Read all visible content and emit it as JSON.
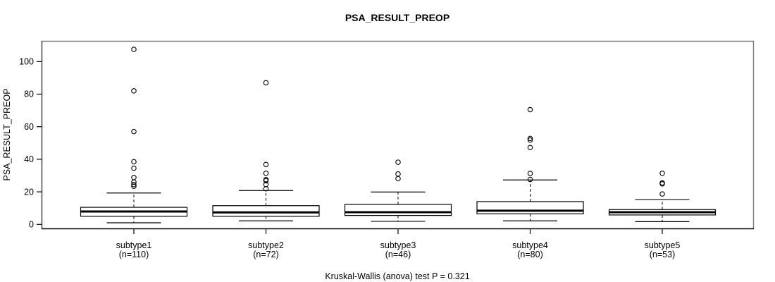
{
  "chart_data": {
    "type": "boxplot",
    "title": "PSA_RESULT_PREOP",
    "ylabel": "PSA_RESULT_PREOP",
    "caption": "Kruskal-Wallis (anova) test P = 0.321",
    "yticks": [
      0,
      20,
      40,
      60,
      80,
      100
    ],
    "ylim": [
      -2.9,
      112.7
    ],
    "grid": false,
    "legend": "none",
    "box_color": "#ffffff",
    "line_color": "#000000",
    "frame_color_topright": "#7d7d7d",
    "groups": [
      {
        "label": "subtype1",
        "n_label": "(n=110)",
        "whisker_low": 1.0,
        "q1": 5.0,
        "median": 7.9,
        "q3": 10.5,
        "whisker_high": 19.3,
        "outliers": [
          23.4,
          24.5,
          26.0,
          28.8,
          34.5,
          38.5,
          57.0,
          82.0,
          107.5
        ]
      },
      {
        "label": "subtype2",
        "n_label": "(n=72)",
        "whisker_low": 2.2,
        "q1": 5.0,
        "median": 7.4,
        "q3": 11.5,
        "whisker_high": 20.8,
        "outliers": [
          21.9,
          24.5,
          26.8,
          27.5,
          31.4,
          36.8,
          87.0
        ]
      },
      {
        "label": "subtype3",
        "n_label": "(n=46)",
        "whisker_low": 1.9,
        "q1": 5.5,
        "median": 7.5,
        "q3": 12.3,
        "whisker_high": 19.9,
        "outliers": [
          28.1,
          31.0,
          38.2
        ]
      },
      {
        "label": "subtype4",
        "n_label": "(n=80)",
        "whisker_low": 2.2,
        "q1": 6.5,
        "median": 8.4,
        "q3": 14.0,
        "whisker_high": 27.3,
        "outliers": [
          27.6,
          31.3,
          47.2,
          51.8,
          52.8,
          70.5
        ]
      },
      {
        "label": "subtype5",
        "n_label": "(n=53)",
        "whisker_low": 1.7,
        "q1": 5.8,
        "median": 7.5,
        "q3": 9.1,
        "whisker_high": 15.2,
        "outliers": [
          18.7,
          24.9,
          25.5,
          31.4
        ]
      }
    ]
  }
}
